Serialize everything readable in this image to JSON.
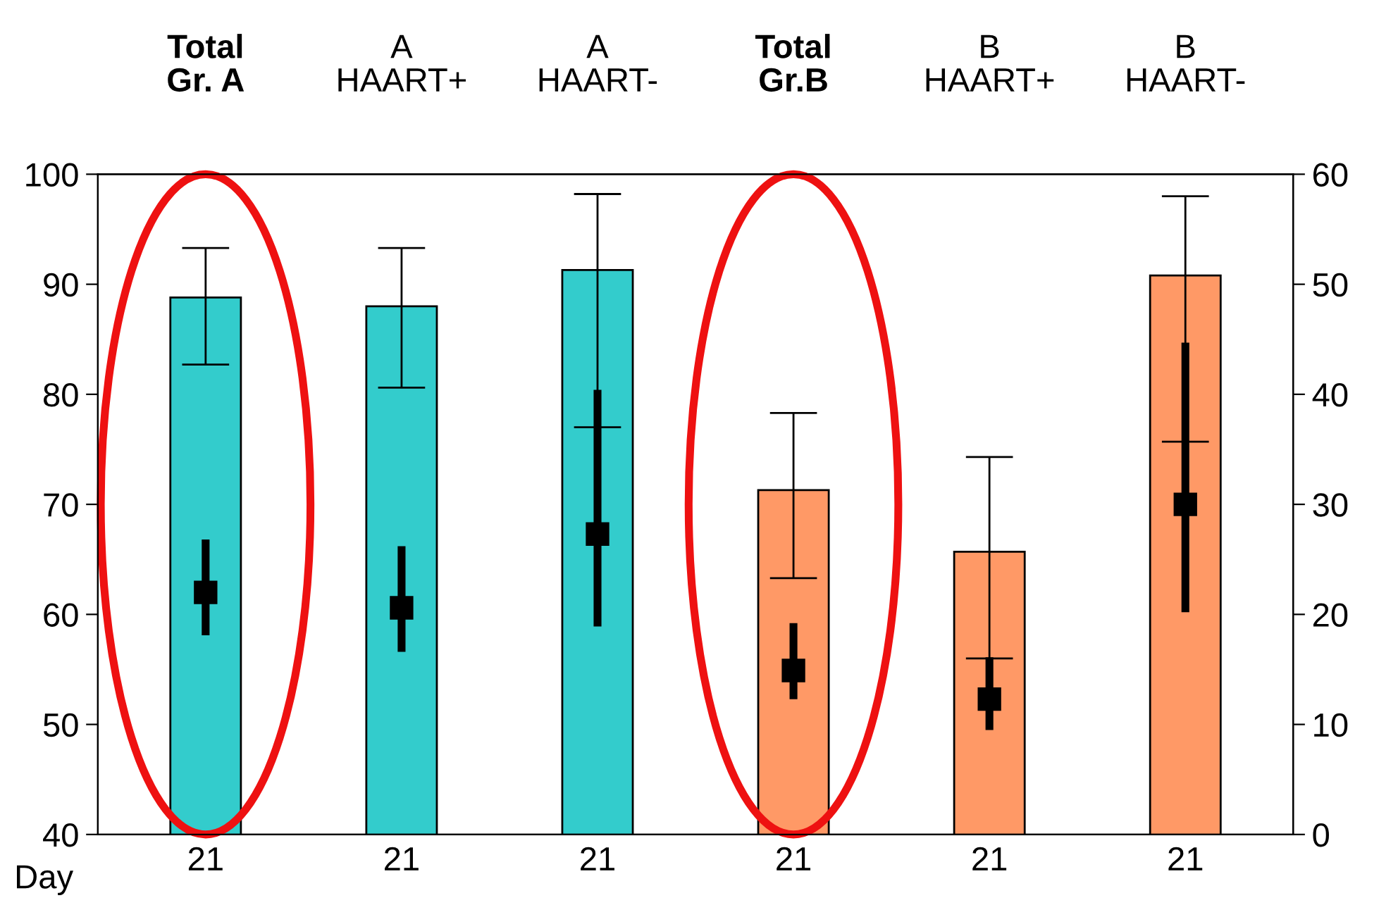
{
  "chart_data": {
    "type": "bar",
    "xlabel": "Day",
    "categories": [
      "21",
      "21",
      "21",
      "21",
      "21",
      "21"
    ],
    "annotations": [
      "Total\nGr. A",
      "A\nHAART+",
      "A\nHAART-",
      "Total\nGr.B",
      "B\nHAART+",
      "B\nHAART-"
    ],
    "series": [
      {
        "colors": [
          "#33cccc",
          "#33cccc",
          "#33cccc",
          "#ff9966",
          "#ff9966",
          "#ff9966"
        ],
        "values": [
          88.8,
          88.0,
          91.3,
          71.3,
          65.7,
          90.8
        ],
        "errors": [
          [
            82.7,
            93.3
          ],
          [
            80.6,
            93.3
          ],
          [
            77.0,
            98.2
          ],
          [
            63.3,
            78.3
          ],
          [
            56.0,
            74.3
          ],
          [
            75.7,
            98.0
          ]
        ]
      },
      {
        "type": "scatter",
        "axis": "y2",
        "color": "#000000",
        "marker": "square",
        "values": [
          22.0,
          20.6,
          27.3,
          14.9,
          12.3,
          30.0
        ],
        "errors": [
          [
            18.1,
            26.8
          ],
          [
            16.6,
            26.2
          ],
          [
            18.9,
            40.4
          ],
          [
            12.3,
            19.2
          ],
          [
            9.5,
            16.1
          ],
          [
            20.2,
            44.7
          ]
        ]
      }
    ],
    "ylim": [
      40,
      100
    ],
    "yticks": [
      40,
      50,
      60,
      70,
      80,
      90,
      100
    ],
    "y2lim": [
      0,
      60
    ],
    "y2ticks": [
      0,
      10,
      20,
      30,
      40,
      50,
      60
    ],
    "grid": false,
    "legend": false
  }
}
